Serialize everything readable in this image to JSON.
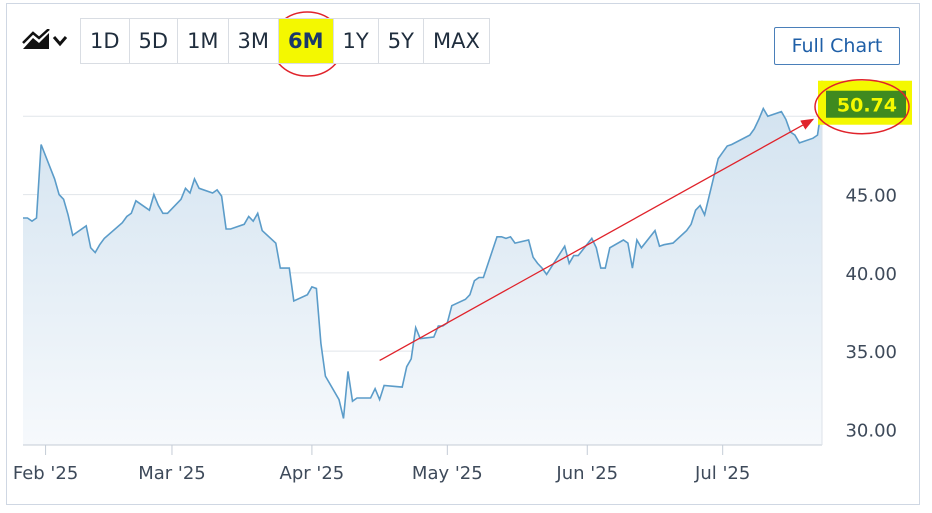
{
  "toolbar": {
    "chart_type_icon": "area-chart-icon",
    "dropdown_icon": "chevron-down-icon",
    "ranges": [
      "1D",
      "5D",
      "1M",
      "3M",
      "6M",
      "1Y",
      "5Y",
      "MAX"
    ],
    "active_range": "6M",
    "full_chart_label": "Full Chart"
  },
  "price_badge": "50.74",
  "colors": {
    "line": "#5b9cc9",
    "area_top": "#d3e3f0",
    "area_bottom": "#f6f9fc",
    "highlight": "#f4f800",
    "badge_bg": "#3f8a1f",
    "annotation": "#e0232b"
  },
  "chart_data": {
    "type": "area",
    "x_ticks": [
      "Feb '25",
      "Mar '25",
      "Apr '25",
      "May '25",
      "Jun '25",
      "Jul '25"
    ],
    "y_ticks": [
      "30.00",
      "35.00",
      "40.00",
      "45.00"
    ],
    "ylim": [
      29,
      52
    ],
    "grid": true,
    "series": [
      {
        "x": [
          "2025-01-27",
          "2025-01-28",
          "2025-01-29",
          "2025-01-30",
          "2025-01-31",
          "2025-02-03",
          "2025-02-04",
          "2025-02-05",
          "2025-02-06",
          "2025-02-07",
          "2025-02-10",
          "2025-02-11",
          "2025-02-12",
          "2025-02-13",
          "2025-02-14",
          "2025-02-18",
          "2025-02-19",
          "2025-02-20",
          "2025-02-21",
          "2025-02-24",
          "2025-02-25",
          "2025-02-26",
          "2025-02-27",
          "2025-02-28",
          "2025-03-03",
          "2025-03-04",
          "2025-03-05",
          "2025-03-06",
          "2025-03-07",
          "2025-03-10",
          "2025-03-11",
          "2025-03-12",
          "2025-03-13",
          "2025-03-14",
          "2025-03-17",
          "2025-03-18",
          "2025-03-19",
          "2025-03-20",
          "2025-03-21",
          "2025-03-24",
          "2025-03-25",
          "2025-03-26",
          "2025-03-27",
          "2025-03-28",
          "2025-03-31",
          "2025-04-01",
          "2025-04-02",
          "2025-04-03",
          "2025-04-04",
          "2025-04-07",
          "2025-04-08",
          "2025-04-09",
          "2025-04-10",
          "2025-04-11",
          "2025-04-14",
          "2025-04-15",
          "2025-04-16",
          "2025-04-17",
          "2025-04-21",
          "2025-04-22",
          "2025-04-23",
          "2025-04-24",
          "2025-04-25",
          "2025-04-28",
          "2025-04-29",
          "2025-04-30",
          "2025-05-01",
          "2025-05-02",
          "2025-05-05",
          "2025-05-06",
          "2025-05-07",
          "2025-05-08",
          "2025-05-09",
          "2025-05-12",
          "2025-05-13",
          "2025-05-14",
          "2025-05-15",
          "2025-05-16",
          "2025-05-19",
          "2025-05-20",
          "2025-05-21",
          "2025-05-22",
          "2025-05-23",
          "2025-05-27",
          "2025-05-28",
          "2025-05-29",
          "2025-05-30",
          "2025-06-02",
          "2025-06-03",
          "2025-06-04",
          "2025-06-05",
          "2025-06-06",
          "2025-06-09",
          "2025-06-10",
          "2025-06-11",
          "2025-06-12",
          "2025-06-13",
          "2025-06-16",
          "2025-06-17",
          "2025-06-18",
          "2025-06-20",
          "2025-06-23",
          "2025-06-24",
          "2025-06-25",
          "2025-06-26",
          "2025-06-27",
          "2025-06-30",
          "2025-07-01",
          "2025-07-02",
          "2025-07-03",
          "2025-07-07",
          "2025-07-08",
          "2025-07-09",
          "2025-07-10",
          "2025-07-11",
          "2025-07-14",
          "2025-07-15",
          "2025-07-16",
          "2025-07-17",
          "2025-07-18",
          "2025-07-21",
          "2025-07-22",
          "2025-07-23"
        ],
        "values": [
          43.5,
          43.5,
          43.3,
          43.5,
          48.2,
          46.0,
          45.0,
          44.7,
          43.7,
          42.4,
          43.0,
          41.6,
          41.3,
          41.8,
          42.2,
          43.2,
          43.6,
          43.8,
          44.6,
          44.0,
          45.0,
          44.3,
          43.8,
          43.8,
          44.7,
          45.4,
          45.1,
          46.0,
          45.4,
          45.1,
          45.3,
          44.9,
          42.8,
          42.8,
          43.1,
          43.6,
          43.3,
          43.8,
          42.7,
          41.9,
          40.3,
          40.3,
          40.3,
          38.2,
          38.6,
          39.1,
          39.0,
          35.5,
          33.4,
          31.9,
          30.7,
          33.7,
          31.8,
          32.0,
          32.0,
          32.6,
          31.9,
          32.8,
          32.7,
          34.0,
          34.5,
          36.5,
          35.8,
          35.9,
          36.6,
          36.6,
          36.8,
          37.9,
          38.3,
          38.6,
          39.5,
          39.7,
          39.7,
          42.3,
          42.3,
          42.2,
          42.3,
          41.9,
          42.1,
          41.0,
          40.6,
          40.3,
          39.9,
          41.7,
          40.6,
          41.1,
          41.1,
          42.2,
          41.6,
          40.3,
          40.3,
          41.6,
          42.1,
          41.9,
          40.3,
          42.1,
          41.6,
          42.7,
          41.7,
          41.8,
          41.9,
          42.7,
          43.1,
          44.0,
          44.3,
          43.7,
          47.3,
          47.7,
          48.1,
          48.2,
          48.8,
          49.2,
          49.8,
          50.5,
          50.0,
          50.3,
          49.8,
          49.0,
          48.8,
          48.3,
          48.6,
          48.8,
          50.74
        ]
      }
    ]
  },
  "annotations": {
    "trend_arrow": {
      "from": [
        "2025-04-16",
        34.4
      ],
      "to": [
        "2025-07-21",
        49.8
      ]
    },
    "circle_6m": true,
    "circle_price": true
  }
}
